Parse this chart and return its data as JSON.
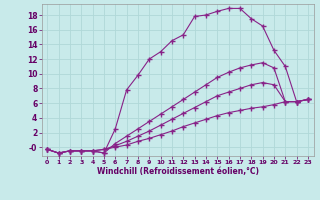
{
  "xlabel": "Windchill (Refroidissement éolien,°C)",
  "bg_color": "#c8eaea",
  "line_color": "#882288",
  "grid_color": "#b0d8d8",
  "xlim": [
    -0.5,
    23.5
  ],
  "ylim": [
    -1.2,
    19.5
  ],
  "ytick_vals": [
    0,
    2,
    4,
    6,
    8,
    10,
    12,
    14,
    16,
    18
  ],
  "ytick_labels": [
    "-0",
    "2",
    "4",
    "6",
    "8",
    "10",
    "12",
    "14",
    "16",
    "18"
  ],
  "xtick_vals": [
    0,
    1,
    2,
    3,
    4,
    5,
    6,
    7,
    8,
    9,
    10,
    11,
    12,
    13,
    14,
    15,
    16,
    17,
    18,
    19,
    20,
    21,
    22,
    23
  ],
  "series1_x": [
    0,
    1,
    2,
    3,
    4,
    5,
    6,
    7,
    8,
    9,
    10,
    11,
    12,
    13,
    14,
    15,
    16,
    17,
    18,
    19,
    20,
    21,
    22,
    23
  ],
  "series1_y": [
    -0.3,
    -0.8,
    -0.5,
    -0.5,
    -0.5,
    -0.8,
    2.5,
    7.8,
    9.8,
    12.0,
    13.0,
    14.5,
    15.3,
    17.8,
    18.0,
    18.5,
    18.9,
    18.9,
    17.5,
    16.5,
    13.2,
    11.0,
    6.2,
    6.5
  ],
  "series2_x": [
    0,
    1,
    2,
    3,
    4,
    5,
    6,
    7,
    8,
    9,
    10,
    11,
    12,
    13,
    14,
    15,
    16,
    17,
    18,
    19,
    20,
    21,
    22,
    23
  ],
  "series2_y": [
    -0.3,
    -0.8,
    -0.5,
    -0.5,
    -0.5,
    -0.8,
    0.5,
    1.5,
    2.5,
    3.5,
    4.5,
    5.5,
    6.5,
    7.5,
    8.5,
    9.5,
    10.2,
    10.8,
    11.2,
    11.5,
    10.8,
    6.2,
    6.2,
    6.5
  ],
  "series3_x": [
    0,
    1,
    2,
    3,
    4,
    5,
    6,
    7,
    8,
    9,
    10,
    11,
    12,
    13,
    14,
    15,
    16,
    17,
    18,
    19,
    20,
    21,
    22,
    23
  ],
  "series3_y": [
    -0.3,
    -0.8,
    -0.5,
    -0.5,
    -0.5,
    -0.3,
    0.2,
    0.8,
    1.5,
    2.2,
    3.0,
    3.8,
    4.6,
    5.4,
    6.2,
    7.0,
    7.5,
    8.0,
    8.5,
    8.8,
    8.5,
    6.2,
    6.2,
    6.5
  ],
  "series4_x": [
    0,
    1,
    2,
    3,
    4,
    5,
    6,
    7,
    8,
    9,
    10,
    11,
    12,
    13,
    14,
    15,
    16,
    17,
    18,
    19,
    20,
    21,
    22,
    23
  ],
  "series4_y": [
    -0.3,
    -0.8,
    -0.5,
    -0.5,
    -0.5,
    -0.3,
    0.0,
    0.3,
    0.8,
    1.2,
    1.7,
    2.2,
    2.8,
    3.3,
    3.8,
    4.3,
    4.7,
    5.0,
    5.3,
    5.5,
    5.8,
    6.2,
    6.2,
    6.5
  ]
}
